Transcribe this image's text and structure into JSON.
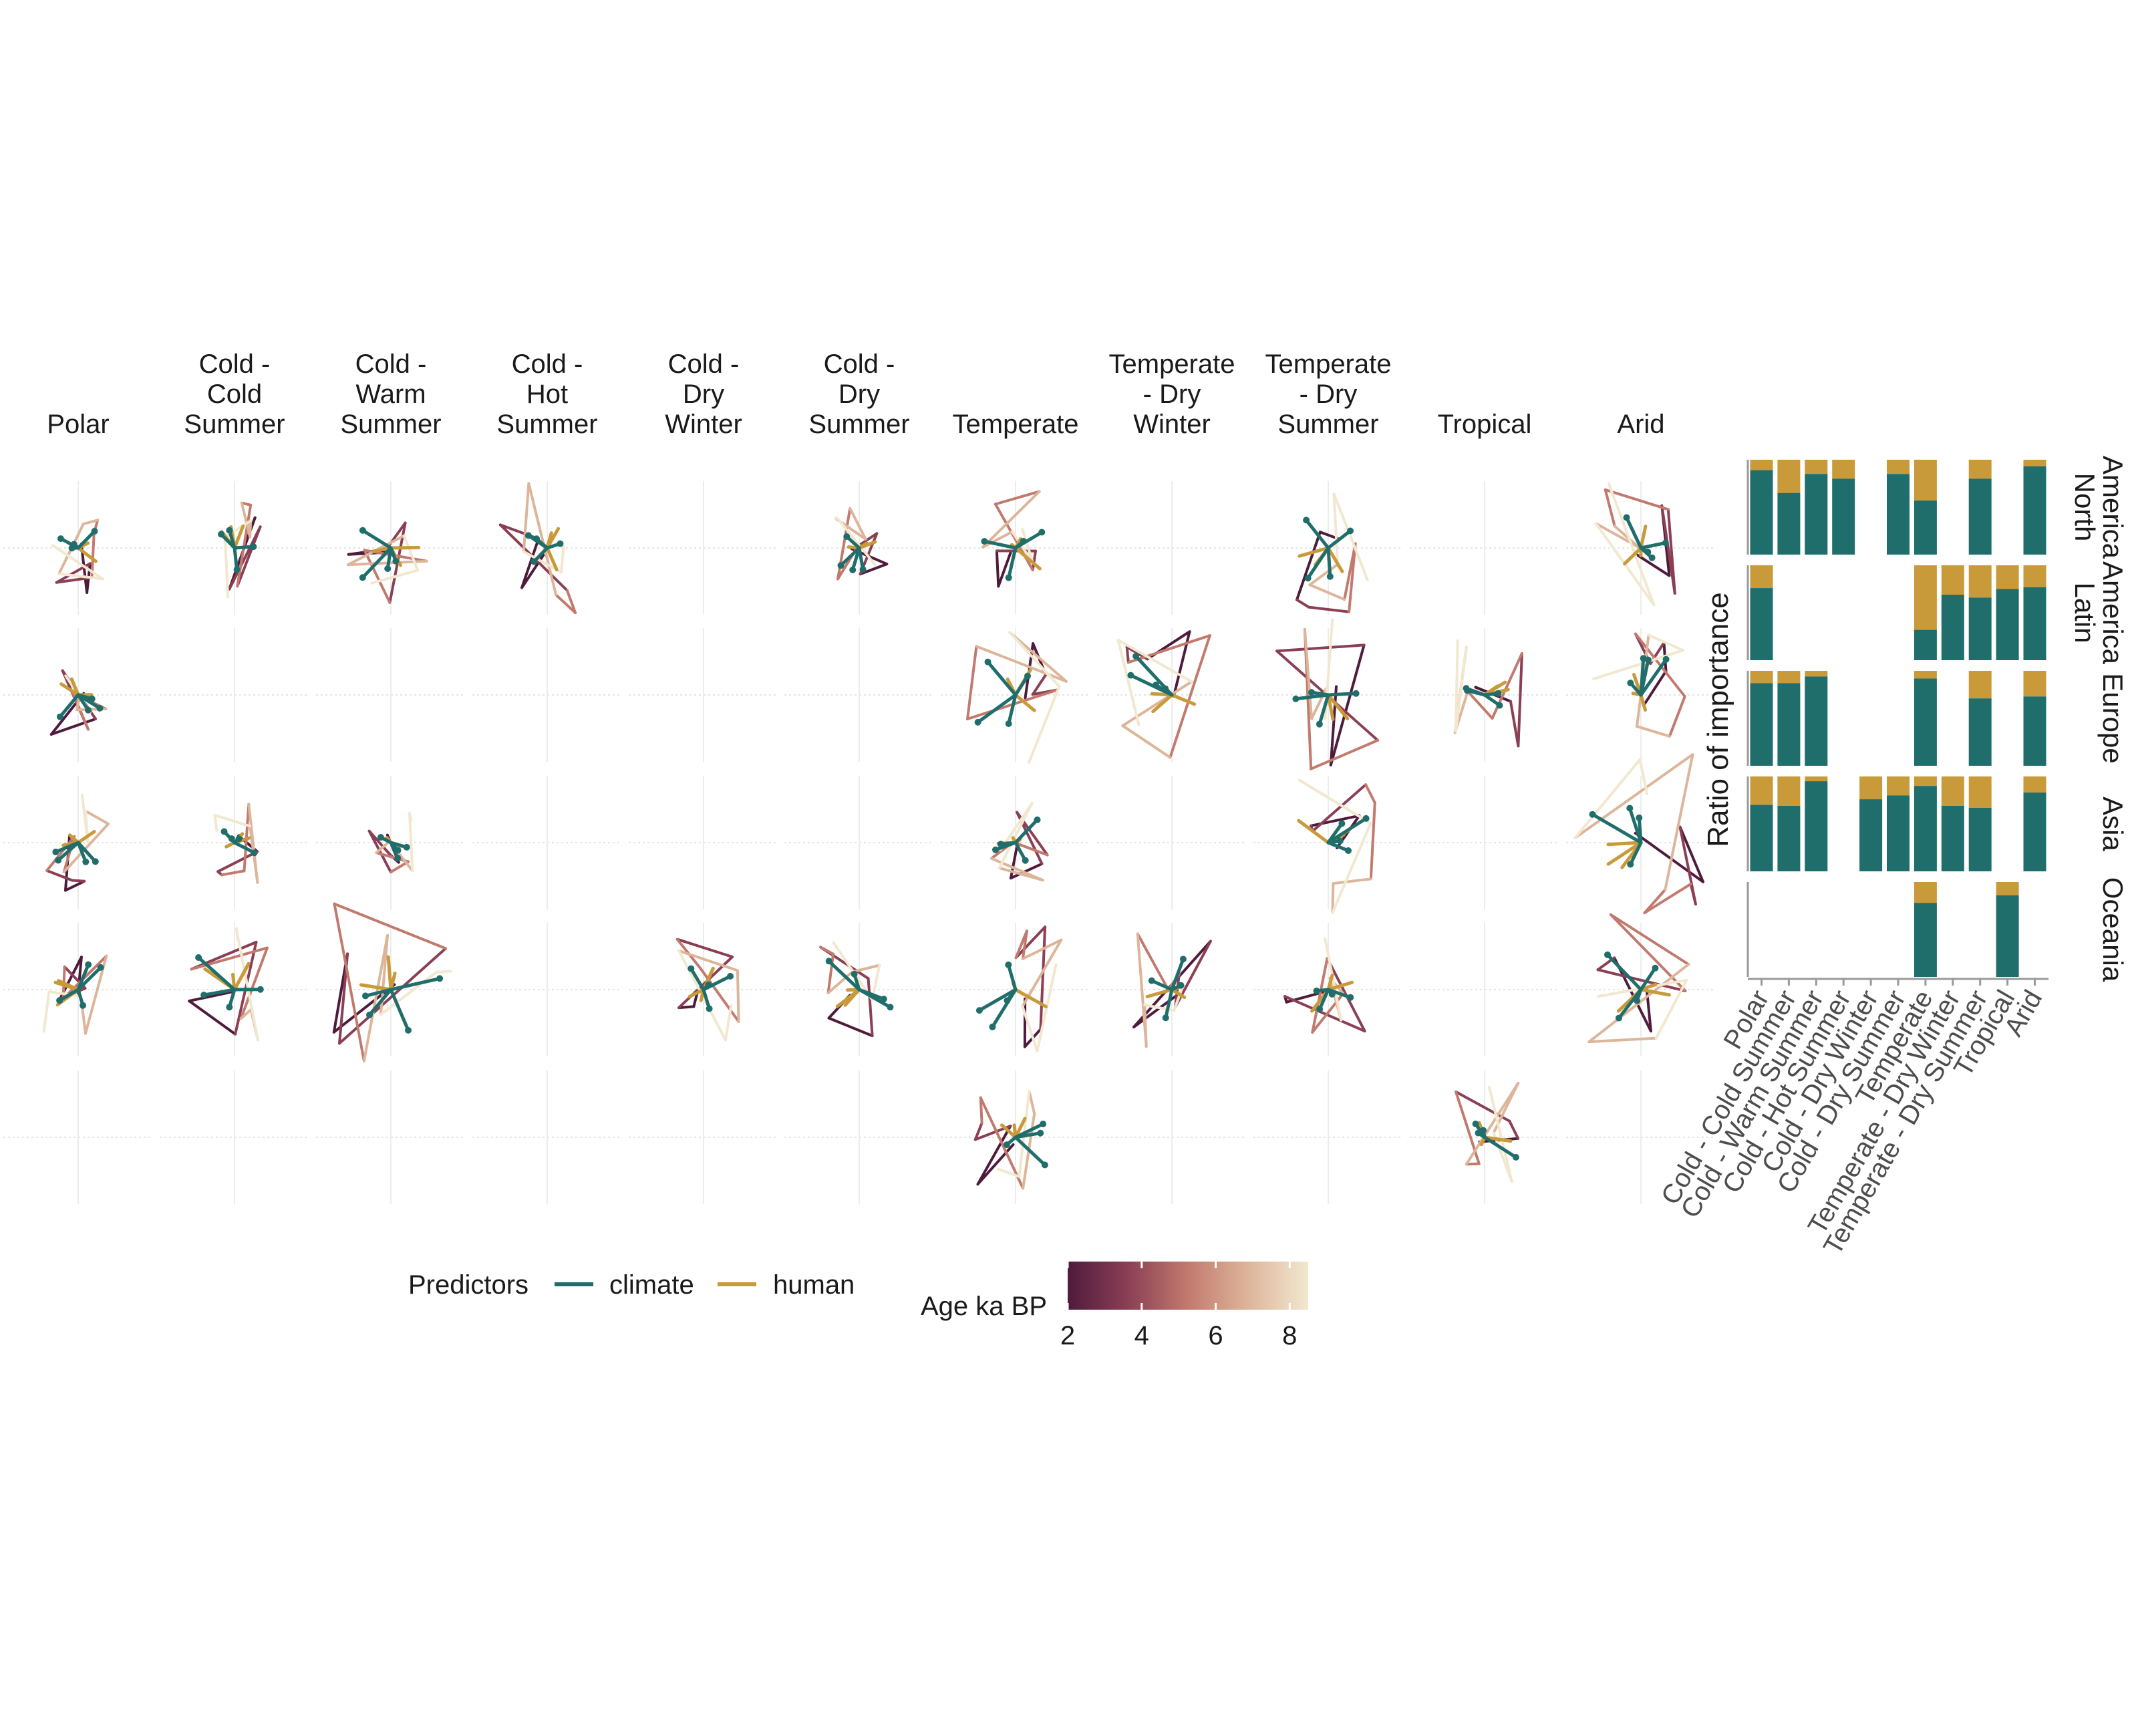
{
  "chart_data": [
    {
      "type": "line",
      "description_of_facets": "trajectories of climate (teal) and human (gold) predictor effects over time, one facet per region x climate zone",
      "columns": [
        "Polar",
        "Cold - Cold Summer",
        "Cold - Warm Summer",
        "Cold - Hot Summer",
        "Cold - Dry Winter",
        "Cold - Dry Summer",
        "Temperate",
        "Temperate - Dry Winter",
        "Temperate - Dry Summer",
        "Tropical",
        "Arid"
      ],
      "column_titles": [
        [
          "Polar"
        ],
        [
          "Cold -",
          "Cold",
          "Summer"
        ],
        [
          "Cold -",
          "Warm",
          "Summer"
        ],
        [
          "Cold -",
          "Hot",
          "Summer"
        ],
        [
          "Cold -",
          "Dry",
          "Winter"
        ],
        [
          "Cold -",
          "Dry",
          "Summer"
        ],
        [
          "Temperate"
        ],
        [
          "Temperate",
          "- Dry",
          "Winter"
        ],
        [
          "Temperate",
          "- Dry",
          "Summer"
        ],
        [
          "Tropical"
        ],
        [
          "Arid"
        ]
      ],
      "rows": [
        "North America",
        "Latin America",
        "Europe",
        "Asia",
        "Oceania"
      ],
      "legend": {
        "predictors_title": "Predictors",
        "predictors": [
          {
            "name": "climate",
            "color": "#1f6e6b"
          },
          {
            "name": "human",
            "color": "#c99a3a"
          }
        ],
        "age_title": "Age ka BP",
        "age_range": [
          2,
          8.5
        ],
        "age_ticks": [
          "2",
          "4",
          "6",
          "8"
        ],
        "age_colors": [
          "#4f1b3c",
          "#8a3f55",
          "#c27a6e",
          "#ddb59a",
          "#f2e8d0"
        ]
      },
      "present": [
        [
          1,
          1,
          1,
          1,
          0,
          1,
          1,
          0,
          1,
          0,
          1
        ],
        [
          1,
          0,
          0,
          0,
          0,
          0,
          1,
          1,
          1,
          1,
          1
        ],
        [
          1,
          1,
          1,
          0,
          0,
          0,
          1,
          0,
          1,
          0,
          1
        ],
        [
          1,
          1,
          1,
          0,
          1,
          1,
          1,
          1,
          1,
          0,
          1
        ],
        [
          0,
          0,
          0,
          0,
          0,
          0,
          1,
          0,
          0,
          1,
          0
        ]
      ],
      "amplitude": [
        [
          0.9,
          1.1,
          1.2,
          1.3,
          0,
          0.8,
          1.2,
          0,
          1.3,
          0,
          1.4
        ],
        [
          0.8,
          0,
          0,
          0,
          0,
          0,
          1.4,
          1.5,
          1.6,
          1.1,
          1.3
        ],
        [
          1.0,
          0.8,
          0.6,
          0,
          0,
          0,
          0.9,
          0,
          1.5,
          0,
          1.8
        ],
        [
          1.0,
          1.3,
          1.8,
          0,
          1.1,
          1.1,
          1.4,
          1.2,
          1.2,
          0,
          1.5
        ],
        [
          0,
          0,
          0,
          0,
          0,
          0,
          1.1,
          0,
          0,
          1.2,
          0
        ]
      ]
    },
    {
      "type": "bar",
      "ylabel": "Ratio of importance",
      "categories": [
        "Polar",
        "Cold - Cold Summer",
        "Cold - Warm Summer",
        "Cold - Hot Summer",
        "Cold - Dry Winter",
        "Cold - Dry Summer",
        "Temperate",
        "Temperate - Dry Winter",
        "Temperate - Dry Summer",
        "Tropical",
        "Arid"
      ],
      "series_colors": {
        "climate": "#1f6e6b",
        "human": "#c99a3a"
      },
      "regions": [
        {
          "name_lines": [
            "North",
            "America"
          ],
          "climate": [
            0.89,
            0.65,
            0.85,
            0.8,
            null,
            0.85,
            0.57,
            null,
            0.8,
            null,
            0.93
          ]
        },
        {
          "name_lines": [
            "Latin",
            "America"
          ],
          "climate": [
            0.76,
            null,
            null,
            null,
            null,
            null,
            0.32,
            0.69,
            0.66,
            0.75,
            0.77
          ]
        },
        {
          "name_lines": [
            "Europe"
          ],
          "climate": [
            0.87,
            0.87,
            0.94,
            null,
            null,
            null,
            0.92,
            null,
            0.71,
            null,
            0.73
          ]
        },
        {
          "name_lines": [
            "Asia"
          ],
          "climate": [
            0.7,
            0.69,
            0.95,
            null,
            0.76,
            0.8,
            0.9,
            0.69,
            0.67,
            null,
            0.83
          ]
        },
        {
          "name_lines": [
            "Oceania"
          ],
          "climate": [
            null,
            null,
            null,
            null,
            null,
            null,
            0.78,
            null,
            null,
            0.86,
            null
          ]
        }
      ]
    }
  ]
}
